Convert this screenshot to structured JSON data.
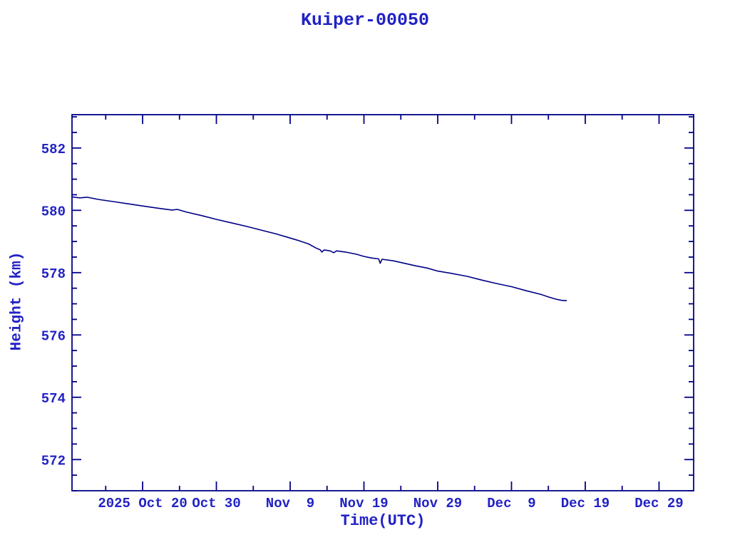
{
  "page": {
    "background_color": "#ffffff",
    "text_color": "#2222c4",
    "axis_color": "#000087"
  },
  "chart_data": {
    "type": "line",
    "title": "Kuiper-00050",
    "xlabel": "Time(UTC)",
    "ylabel": "Height (km)",
    "x_unit": "days since 2025 Oct 20 00:00 UTC",
    "xlim": [
      -9.57,
      74.69
    ],
    "ylim": [
      571.0,
      583.07
    ],
    "grid": false,
    "legend": "none",
    "line_color": "#000087",
    "x_major_ticks": [
      {
        "label": "2025 Oct 20",
        "day": 0
      },
      {
        "label": "Oct 30",
        "day": 10
      },
      {
        "label": "Nov  9",
        "day": 20
      },
      {
        "label": "Nov 19",
        "day": 30
      },
      {
        "label": "Nov 29",
        "day": 40
      },
      {
        "label": "Dec  9",
        "day": 50
      },
      {
        "label": "Dec 19",
        "day": 60
      },
      {
        "label": "Dec 29",
        "day": 70
      }
    ],
    "x_minor_step_days": 5,
    "y_major_ticks": [
      {
        "label": "572",
        "value": 572
      },
      {
        "label": "574",
        "value": 574
      },
      {
        "label": "576",
        "value": 576
      },
      {
        "label": "578",
        "value": 578
      },
      {
        "label": "580",
        "value": 580
      },
      {
        "label": "582",
        "value": 582
      }
    ],
    "y_minor_step_km": 0.5,
    "series": [
      {
        "name": "satellite-height",
        "points": [
          [
            -9.57,
            580.43
          ],
          [
            -8.5,
            580.4
          ],
          [
            -7.5,
            580.42
          ],
          [
            -6,
            580.35
          ],
          [
            -4,
            580.28
          ],
          [
            -2,
            580.21
          ],
          [
            0,
            580.14
          ],
          [
            2,
            580.07
          ],
          [
            4,
            580.01
          ],
          [
            4.7,
            580.03
          ],
          [
            6,
            579.94
          ],
          [
            8,
            579.83
          ],
          [
            10,
            579.71
          ],
          [
            12,
            579.6
          ],
          [
            14,
            579.49
          ],
          [
            16,
            579.37
          ],
          [
            18,
            579.25
          ],
          [
            20,
            579.11
          ],
          [
            21,
            579.04
          ],
          [
            21.5,
            579.0
          ],
          [
            22.5,
            578.92
          ],
          [
            23.5,
            578.79
          ],
          [
            24.1,
            578.73
          ],
          [
            24.3,
            578.66
          ],
          [
            24.6,
            578.73
          ],
          [
            25.4,
            578.7
          ],
          [
            25.9,
            578.64
          ],
          [
            26.3,
            578.7
          ],
          [
            27.5,
            578.66
          ],
          [
            29,
            578.59
          ],
          [
            30,
            578.52
          ],
          [
            31,
            578.47
          ],
          [
            32.0,
            578.44
          ],
          [
            32.2,
            578.3
          ],
          [
            32.45,
            578.43
          ],
          [
            34,
            578.38
          ],
          [
            35.5,
            578.3
          ],
          [
            37,
            578.22
          ],
          [
            38.5,
            578.15
          ],
          [
            40,
            578.05
          ],
          [
            42,
            577.97
          ],
          [
            44,
            577.88
          ],
          [
            46,
            577.76
          ],
          [
            48,
            577.65
          ],
          [
            50,
            577.55
          ],
          [
            52,
            577.42
          ],
          [
            54,
            577.3
          ],
          [
            55,
            577.22
          ],
          [
            56,
            577.15
          ],
          [
            56.8,
            577.11
          ],
          [
            57.5,
            577.1
          ]
        ]
      }
    ]
  }
}
